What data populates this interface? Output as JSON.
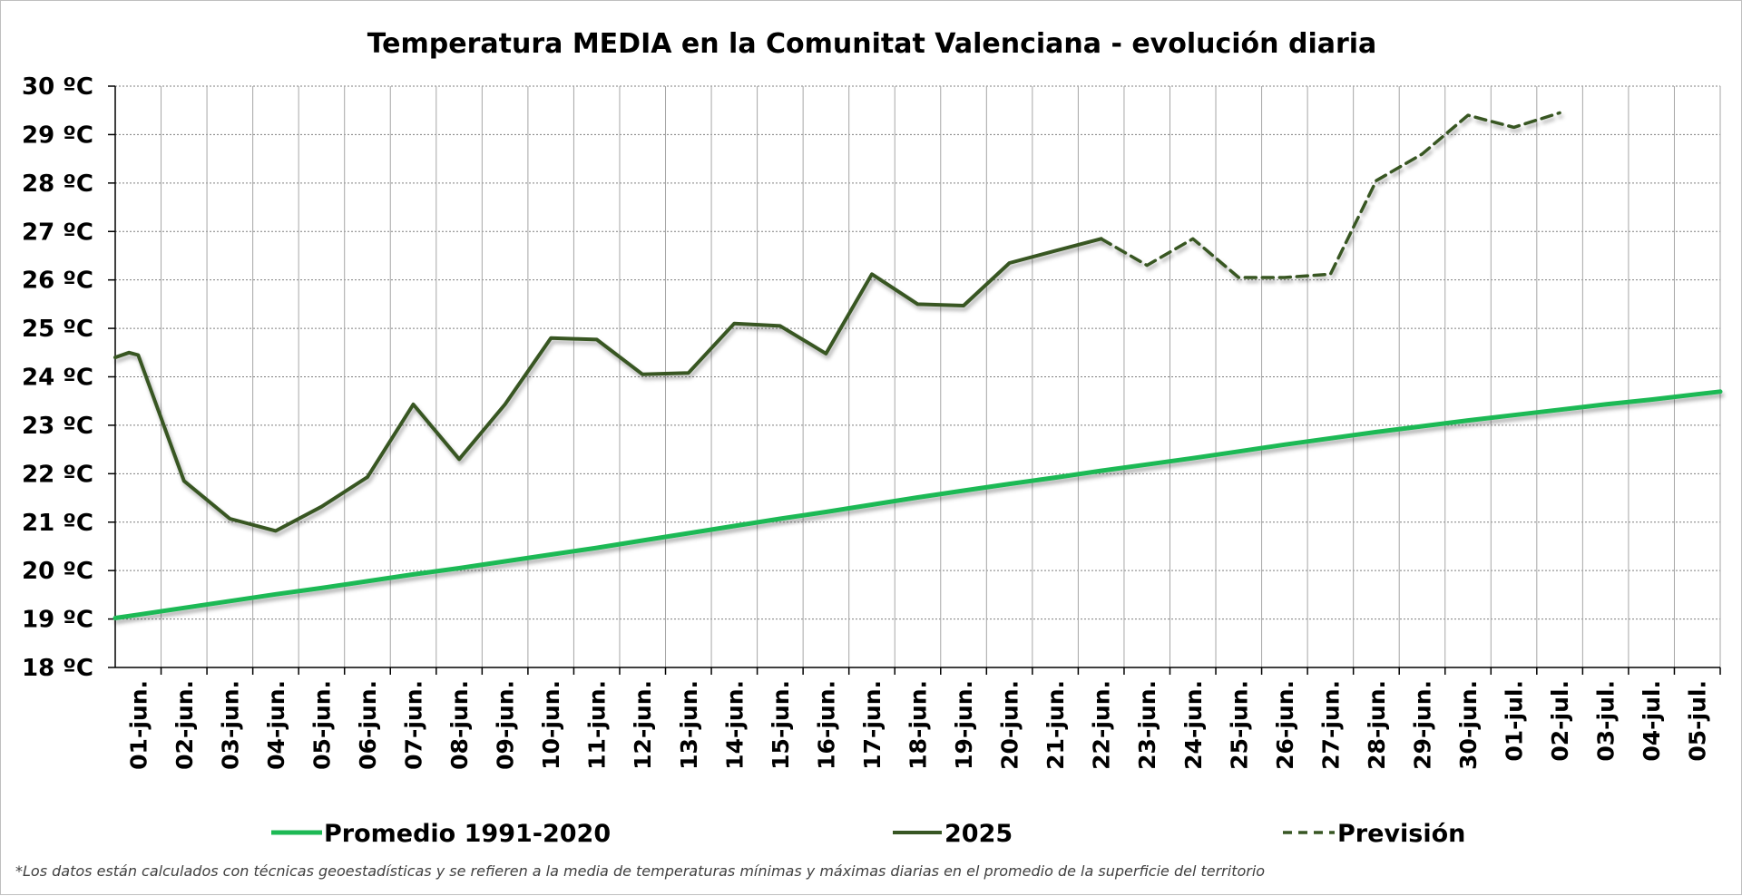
{
  "chart_data": {
    "type": "line",
    "title": "Temperatura MEDIA en la Comunitat Valenciana - evolución diaria",
    "y_tick_labels": [
      "18 ºC",
      "19 ºC",
      "20 ºC",
      "21 ºC",
      "22 ºC",
      "23 ºC",
      "24 ºC",
      "25 ºC",
      "26 ºC",
      "27 ºC",
      "28 ºC",
      "29 ºC",
      "30 ºC"
    ],
    "ylim": [
      18,
      30
    ],
    "categories": [
      "01-jun.",
      "02-jun.",
      "03-jun.",
      "04-jun.",
      "05-jun.",
      "06-jun.",
      "07-jun.",
      "08-jun.",
      "09-jun.",
      "10-jun.",
      "11-jun.",
      "12-jun.",
      "13-jun.",
      "14-jun.",
      "15-jun.",
      "16-jun.",
      "17-jun.",
      "18-jun.",
      "19-jun.",
      "20-jun.",
      "21-jun.",
      "22-jun.",
      "23-jun.",
      "24-jun.",
      "25-jun.",
      "26-jun.",
      "27-jun.",
      "28-jun.",
      "29-jun.",
      "30-jun.",
      "01-jul.",
      "02-jul.",
      "03-jul.",
      "04-jul.",
      "05-jul."
    ],
    "grid": true,
    "legend_position": "bottom",
    "series": [
      {
        "name": "Promedio 1991-2020",
        "color": "#1db954",
        "style": "solid",
        "values": [
          19.09,
          19.23,
          19.37,
          19.51,
          19.64,
          19.78,
          19.92,
          20.05,
          20.19,
          20.33,
          20.47,
          20.62,
          20.77,
          20.92,
          21.07,
          21.21,
          21.36,
          21.51,
          21.65,
          21.79,
          21.92,
          22.06,
          22.19,
          22.32,
          22.46,
          22.6,
          22.73,
          22.86,
          22.98,
          23.1,
          23.21,
          23.32,
          23.43,
          23.53,
          23.64
        ]
      },
      {
        "name": "2025",
        "color": "#375623",
        "style": "solid",
        "values": [
          24.45,
          21.85,
          21.07,
          20.82,
          21.32,
          21.93,
          23.43,
          22.3,
          23.43,
          24.8,
          24.77,
          24.05,
          24.08,
          25.1,
          25.05,
          24.48,
          26.12,
          25.5,
          25.47,
          26.35,
          26.6,
          26.85,
          null,
          null,
          null,
          null,
          null,
          null,
          null,
          null,
          null,
          null,
          null,
          null,
          null
        ]
      },
      {
        "name": "Previsión",
        "color": "#375623",
        "style": "dashed",
        "values": [
          null,
          null,
          null,
          null,
          null,
          null,
          null,
          null,
          null,
          null,
          null,
          null,
          null,
          null,
          null,
          null,
          null,
          null,
          null,
          null,
          null,
          26.85,
          26.3,
          26.85,
          26.05,
          26.05,
          26.12,
          28.05,
          28.6,
          29.4,
          29.15,
          29.45,
          null,
          null,
          null
        ]
      }
    ],
    "footnote": "*Los datos están calculados con técnicas geoestadísticas y se refieren a la media de temperaturas mínimas y máximas diarias en el promedio de la superficie del territorio"
  }
}
